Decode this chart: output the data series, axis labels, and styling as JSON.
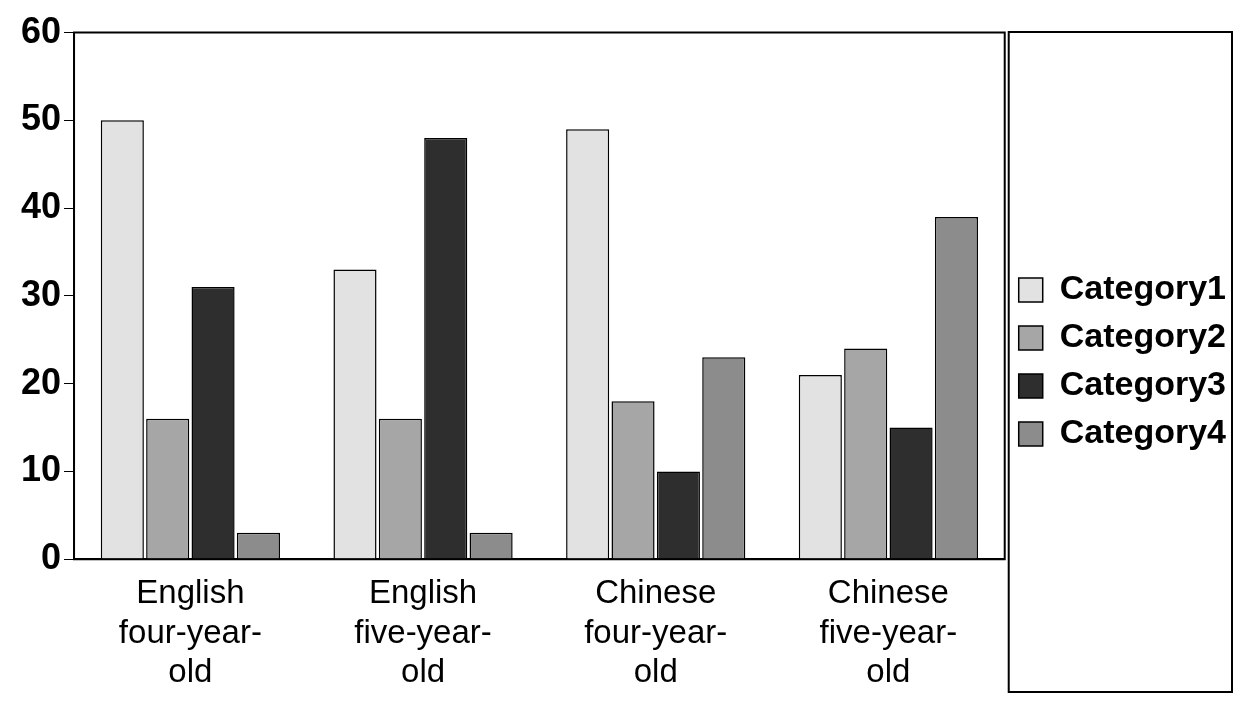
{
  "chart_data": {
    "type": "bar",
    "categories": [
      "English\nfour-year-\nold",
      "English\nfive-year-\nold",
      "Chinese\nfour-year-\nold",
      "Chinese\nfive-year-\nold"
    ],
    "series": [
      {
        "name": "Category1",
        "color": "#e2e2e2",
        "values": [
          50,
          33,
          49,
          21
        ]
      },
      {
        "name": "Category2",
        "color": "#a6a6a6",
        "values": [
          16,
          16,
          18,
          24
        ]
      },
      {
        "name": "Category3",
        "color": "#2e2e2e",
        "values": [
          31,
          48,
          10,
          15
        ]
      },
      {
        "name": "Category4",
        "color": "#8c8c8c",
        "values": [
          3,
          3,
          23,
          39
        ]
      }
    ],
    "ylim": [
      0,
      60
    ],
    "yticks": [
      0,
      10,
      20,
      30,
      40,
      50,
      60
    ],
    "grid": false,
    "legend": "right"
  }
}
